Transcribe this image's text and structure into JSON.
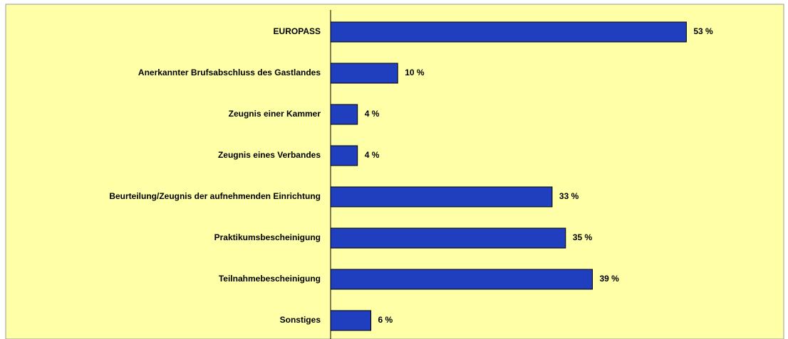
{
  "chart_data": {
    "type": "hbar",
    "categories": [
      "EUROPASS",
      "Anerkannter Brufsabschluss des Gastlandes",
      "Zeugnis einer Kammer",
      "Zeugnis eines Verbandes",
      "Beurteilung/Zeugnis der aufnehmenden Einrichtung",
      "Praktikumsbescheinigung",
      "Teilnahmebescheinigung",
      "Sonstiges"
    ],
    "values": [
      53,
      10,
      4,
      4,
      33,
      35,
      39,
      6
    ],
    "value_labels": [
      "53 %",
      "10 %",
      "4 %",
      "4 %",
      "33 %",
      "35 %",
      "39 %",
      "6 %"
    ],
    "color": "#1f3fbf",
    "xlim": [
      0,
      67.5
    ]
  }
}
